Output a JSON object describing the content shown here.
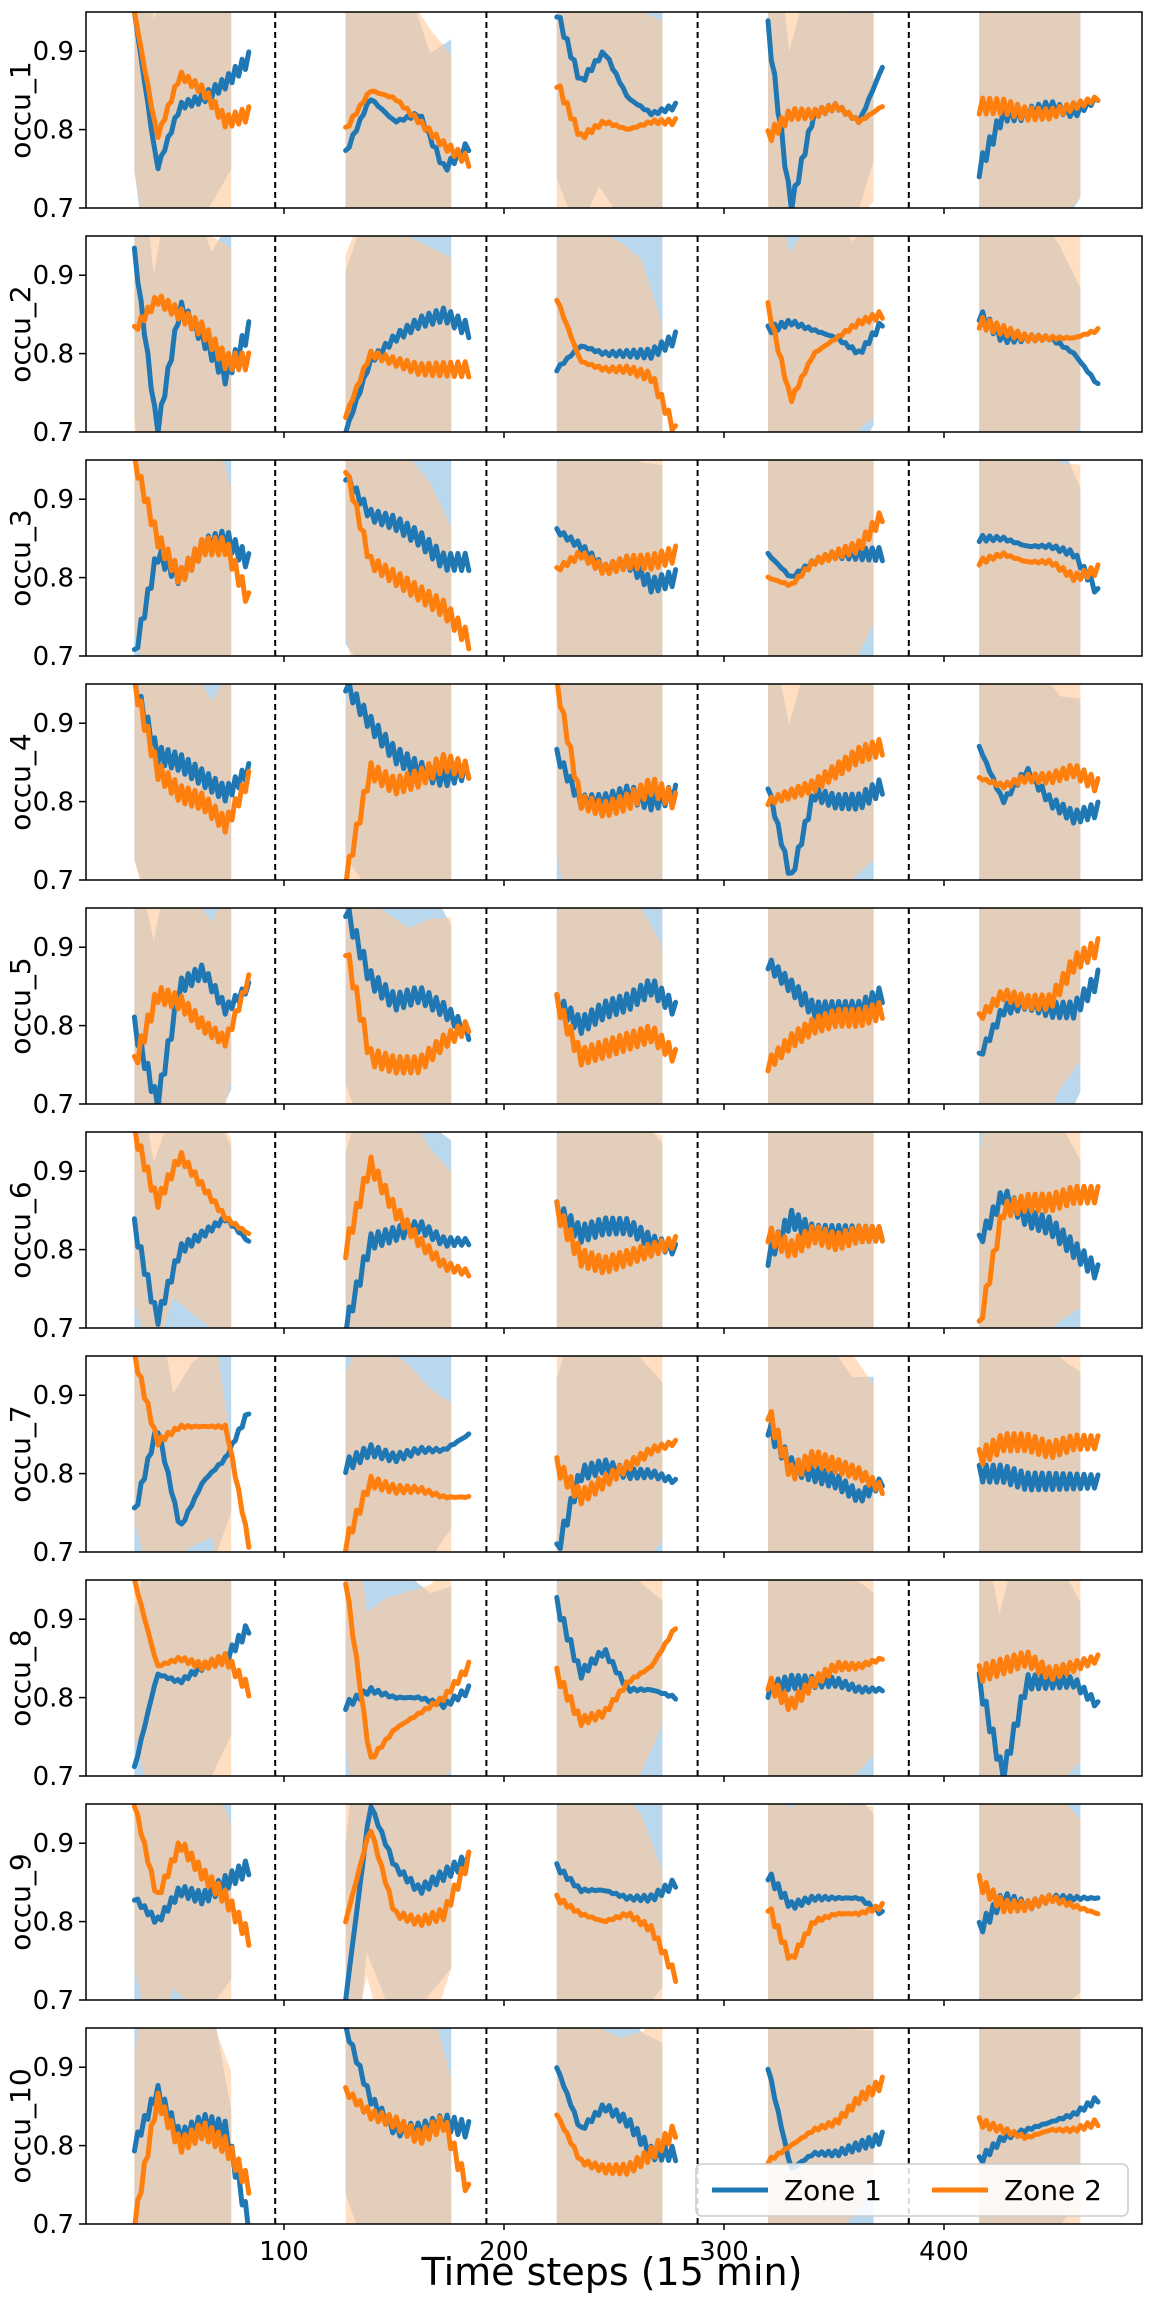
{
  "chart_data": {
    "type": "line",
    "layout": "10 vertically stacked subplots sharing the x axis",
    "xlabel": "Time steps (15 min)",
    "xlim": [
      10,
      490
    ],
    "ylim": [
      0.7,
      0.95
    ],
    "xticks": [
      100,
      200,
      300,
      400
    ],
    "yticks": [
      0.7,
      0.8,
      0.9
    ],
    "vertical_dashed_lines_x": [
      96,
      192,
      288,
      384
    ],
    "segments_x": [
      [
        32,
        84
      ],
      [
        128,
        184
      ],
      [
        224,
        278
      ],
      [
        320,
        372
      ],
      [
        416,
        470
      ]
    ],
    "band_x": [
      [
        32,
        76
      ],
      [
        128,
        176
      ],
      [
        224,
        272
      ],
      [
        320,
        368
      ],
      [
        416,
        462
      ]
    ],
    "grid": false,
    "legend": {
      "position": "lower-right of last subplot",
      "ncol": 2
    },
    "series": [
      {
        "name": "Zone 1",
        "color": "#1f77b4",
        "band_color": "#9ec8e6"
      },
      {
        "name": "Zone 2",
        "color": "#ff7f0e",
        "band_color": "#ffc89a"
      }
    ],
    "subplots": [
      {
        "ylabel": "occu_1",
        "z1": [
          [
            0.95,
            0.75,
            0.83,
            0.84,
            0.86,
            0.89
          ],
          [
            0.77,
            0.84,
            0.81,
            0.82,
            0.75,
            0.78
          ],
          [
            0.95,
            0.86,
            0.9,
            0.84,
            0.82,
            0.83
          ],
          [
            0.93,
            0.7,
            0.82,
            0.83,
            0.81,
            0.88
          ],
          [
            0.75,
            0.82,
            0.82,
            0.83,
            0.82,
            0.84
          ]
        ],
        "z2": [
          [
            0.95,
            0.79,
            0.87,
            0.85,
            0.81,
            0.82
          ],
          [
            0.8,
            0.85,
            0.84,
            0.81,
            0.78,
            0.76
          ],
          [
            0.86,
            0.79,
            0.81,
            0.8,
            0.81,
            0.81
          ],
          [
            0.79,
            0.82,
            0.82,
            0.83,
            0.81,
            0.83
          ],
          [
            0.83,
            0.83,
            0.82,
            0.82,
            0.83,
            0.84
          ]
        ]
      },
      {
        "ylabel": "occu_2",
        "z1": [
          [
            0.93,
            0.7,
            0.86,
            0.82,
            0.77,
            0.83
          ],
          [
            0.7,
            0.79,
            0.82,
            0.84,
            0.85,
            0.83
          ],
          [
            0.78,
            0.81,
            0.8,
            0.8,
            0.8,
            0.82
          ],
          [
            0.83,
            0.84,
            0.83,
            0.82,
            0.8,
            0.84
          ],
          [
            0.85,
            0.82,
            0.82,
            0.82,
            0.8,
            0.76
          ]
        ],
        "z2": [
          [
            0.83,
            0.87,
            0.85,
            0.83,
            0.79,
            0.79
          ],
          [
            0.72,
            0.8,
            0.79,
            0.78,
            0.78,
            0.78
          ],
          [
            0.87,
            0.79,
            0.78,
            0.78,
            0.77,
            0.7
          ],
          [
            0.86,
            0.74,
            0.8,
            0.82,
            0.84,
            0.85
          ],
          [
            0.84,
            0.83,
            0.82,
            0.82,
            0.82,
            0.83
          ]
        ]
      },
      {
        "ylabel": "occu_3",
        "z1": [
          [
            0.7,
            0.83,
            0.8,
            0.84,
            0.85,
            0.82
          ],
          [
            0.93,
            0.88,
            0.87,
            0.85,
            0.82,
            0.82
          ],
          [
            0.86,
            0.84,
            0.81,
            0.82,
            0.79,
            0.8
          ],
          [
            0.83,
            0.8,
            0.82,
            0.83,
            0.83,
            0.83
          ],
          [
            0.85,
            0.85,
            0.84,
            0.84,
            0.83,
            0.78
          ]
        ],
        "z2": [
          [
            0.95,
            0.85,
            0.8,
            0.84,
            0.84,
            0.77
          ],
          [
            0.94,
            0.82,
            0.8,
            0.78,
            0.76,
            0.72
          ],
          [
            0.81,
            0.83,
            0.81,
            0.82,
            0.82,
            0.83
          ],
          [
            0.8,
            0.79,
            0.82,
            0.83,
            0.84,
            0.88
          ],
          [
            0.82,
            0.83,
            0.82,
            0.82,
            0.8,
            0.81
          ]
        ]
      },
      {
        "ylabel": "occu_4",
        "z1": [
          [
            0.95,
            0.86,
            0.85,
            0.83,
            0.81,
            0.84
          ],
          [
            0.95,
            0.9,
            0.86,
            0.84,
            0.83,
            0.84
          ],
          [
            0.86,
            0.8,
            0.8,
            0.81,
            0.8,
            0.81
          ],
          [
            0.82,
            0.7,
            0.81,
            0.8,
            0.8,
            0.82
          ],
          [
            0.87,
            0.8,
            0.84,
            0.8,
            0.78,
            0.79
          ]
        ],
        "z2": [
          [
            0.95,
            0.84,
            0.81,
            0.8,
            0.77,
            0.83
          ],
          [
            0.7,
            0.84,
            0.82,
            0.83,
            0.85,
            0.84
          ],
          [
            0.95,
            0.8,
            0.79,
            0.8,
            0.82,
            0.8
          ],
          [
            0.8,
            0.81,
            0.82,
            0.84,
            0.86,
            0.87
          ],
          [
            0.83,
            0.82,
            0.83,
            0.83,
            0.84,
            0.82
          ]
        ]
      },
      {
        "ylabel": "occu_5",
        "z1": [
          [
            0.8,
            0.7,
            0.85,
            0.87,
            0.82,
            0.85
          ],
          [
            0.95,
            0.86,
            0.83,
            0.84,
            0.82,
            0.79
          ],
          [
            0.83,
            0.8,
            0.82,
            0.83,
            0.85,
            0.82
          ],
          [
            0.88,
            0.85,
            0.82,
            0.82,
            0.82,
            0.84
          ],
          [
            0.76,
            0.82,
            0.83,
            0.82,
            0.82,
            0.86
          ]
        ],
        "z2": [
          [
            0.75,
            0.84,
            0.83,
            0.8,
            0.78,
            0.86
          ],
          [
            0.9,
            0.76,
            0.75,
            0.75,
            0.78,
            0.8
          ],
          [
            0.83,
            0.76,
            0.77,
            0.78,
            0.79,
            0.76
          ],
          [
            0.75,
            0.78,
            0.8,
            0.81,
            0.81,
            0.82
          ],
          [
            0.81,
            0.84,
            0.83,
            0.83,
            0.88,
            0.9
          ]
        ]
      },
      {
        "ylabel": "occu_6",
        "z1": [
          [
            0.83,
            0.71,
            0.8,
            0.82,
            0.84,
            0.81
          ],
          [
            0.7,
            0.81,
            0.82,
            0.83,
            0.81,
            0.81
          ],
          [
            0.85,
            0.82,
            0.83,
            0.83,
            0.81,
            0.8
          ],
          [
            0.79,
            0.84,
            0.82,
            0.82,
            0.82,
            0.82
          ],
          [
            0.81,
            0.87,
            0.84,
            0.83,
            0.8,
            0.77
          ]
        ],
        "z2": [
          [
            0.95,
            0.86,
            0.92,
            0.88,
            0.84,
            0.82
          ],
          [
            0.8,
            0.91,
            0.85,
            0.81,
            0.78,
            0.77
          ],
          [
            0.85,
            0.79,
            0.78,
            0.79,
            0.8,
            0.81
          ],
          [
            0.82,
            0.8,
            0.82,
            0.81,
            0.82,
            0.82
          ],
          [
            0.7,
            0.85,
            0.86,
            0.86,
            0.87,
            0.87
          ]
        ]
      },
      {
        "ylabel": "occu_7",
        "z1": [
          [
            0.75,
            0.86,
            0.73,
            0.79,
            0.82,
            0.88
          ],
          [
            0.81,
            0.83,
            0.82,
            0.83,
            0.83,
            0.85
          ],
          [
            0.7,
            0.8,
            0.81,
            0.8,
            0.8,
            0.79
          ],
          [
            0.86,
            0.81,
            0.8,
            0.79,
            0.77,
            0.79
          ],
          [
            0.8,
            0.8,
            0.79,
            0.79,
            0.79,
            0.79
          ]
        ],
        "z2": [
          [
            0.95,
            0.84,
            0.86,
            0.86,
            0.86,
            0.71
          ],
          [
            0.71,
            0.79,
            0.78,
            0.78,
            0.77,
            0.77
          ],
          [
            0.81,
            0.77,
            0.79,
            0.81,
            0.83,
            0.84
          ],
          [
            0.88,
            0.8,
            0.82,
            0.81,
            0.8,
            0.78
          ],
          [
            0.82,
            0.84,
            0.84,
            0.83,
            0.84,
            0.84
          ]
        ]
      },
      {
        "ylabel": "occu_8",
        "z1": [
          [
            0.71,
            0.83,
            0.82,
            0.84,
            0.85,
            0.89
          ],
          [
            0.79,
            0.81,
            0.8,
            0.8,
            0.79,
            0.81
          ],
          [
            0.92,
            0.83,
            0.86,
            0.81,
            0.81,
            0.8
          ],
          [
            0.81,
            0.82,
            0.82,
            0.82,
            0.81,
            0.81
          ],
          [
            0.82,
            0.7,
            0.82,
            0.82,
            0.82,
            0.79
          ]
        ],
        "z2": [
          [
            0.95,
            0.84,
            0.85,
            0.84,
            0.85,
            0.81
          ],
          [
            0.95,
            0.72,
            0.76,
            0.78,
            0.8,
            0.84
          ],
          [
            0.83,
            0.77,
            0.78,
            0.82,
            0.84,
            0.89
          ],
          [
            0.82,
            0.79,
            0.82,
            0.84,
            0.84,
            0.85
          ],
          [
            0.83,
            0.84,
            0.85,
            0.83,
            0.84,
            0.85
          ]
        ]
      },
      {
        "ylabel": "occu_9",
        "z1": [
          [
            0.83,
            0.8,
            0.84,
            0.83,
            0.85,
            0.87
          ],
          [
            0.7,
            0.95,
            0.87,
            0.84,
            0.86,
            0.88
          ],
          [
            0.87,
            0.84,
            0.84,
            0.83,
            0.83,
            0.85
          ],
          [
            0.86,
            0.82,
            0.83,
            0.83,
            0.83,
            0.81
          ],
          [
            0.79,
            0.83,
            0.82,
            0.83,
            0.83,
            0.83
          ]
        ],
        "z2": [
          [
            0.95,
            0.83,
            0.9,
            0.86,
            0.83,
            0.78
          ],
          [
            0.8,
            0.92,
            0.81,
            0.8,
            0.81,
            0.88
          ],
          [
            0.83,
            0.81,
            0.8,
            0.81,
            0.79,
            0.73
          ],
          [
            0.82,
            0.75,
            0.8,
            0.81,
            0.81,
            0.82
          ],
          [
            0.85,
            0.82,
            0.82,
            0.83,
            0.82,
            0.81
          ]
        ]
      },
      {
        "ylabel": "occu_10",
        "z1": [
          [
            0.8,
            0.87,
            0.81,
            0.83,
            0.82,
            0.7
          ],
          [
            0.95,
            0.86,
            0.82,
            0.82,
            0.83,
            0.82
          ],
          [
            0.9,
            0.82,
            0.85,
            0.83,
            0.79,
            0.79
          ],
          [
            0.9,
            0.77,
            0.79,
            0.79,
            0.8,
            0.81
          ],
          [
            0.78,
            0.81,
            0.82,
            0.83,
            0.84,
            0.86
          ]
        ],
        "z2": [
          [
            0.7,
            0.86,
            0.8,
            0.82,
            0.8,
            0.75
          ],
          [
            0.87,
            0.84,
            0.83,
            0.81,
            0.83,
            0.74
          ],
          [
            0.84,
            0.78,
            0.77,
            0.77,
            0.79,
            0.82
          ],
          [
            0.78,
            0.8,
            0.82,
            0.83,
            0.86,
            0.88
          ],
          [
            0.83,
            0.82,
            0.81,
            0.82,
            0.82,
            0.83
          ]
        ]
      }
    ]
  }
}
